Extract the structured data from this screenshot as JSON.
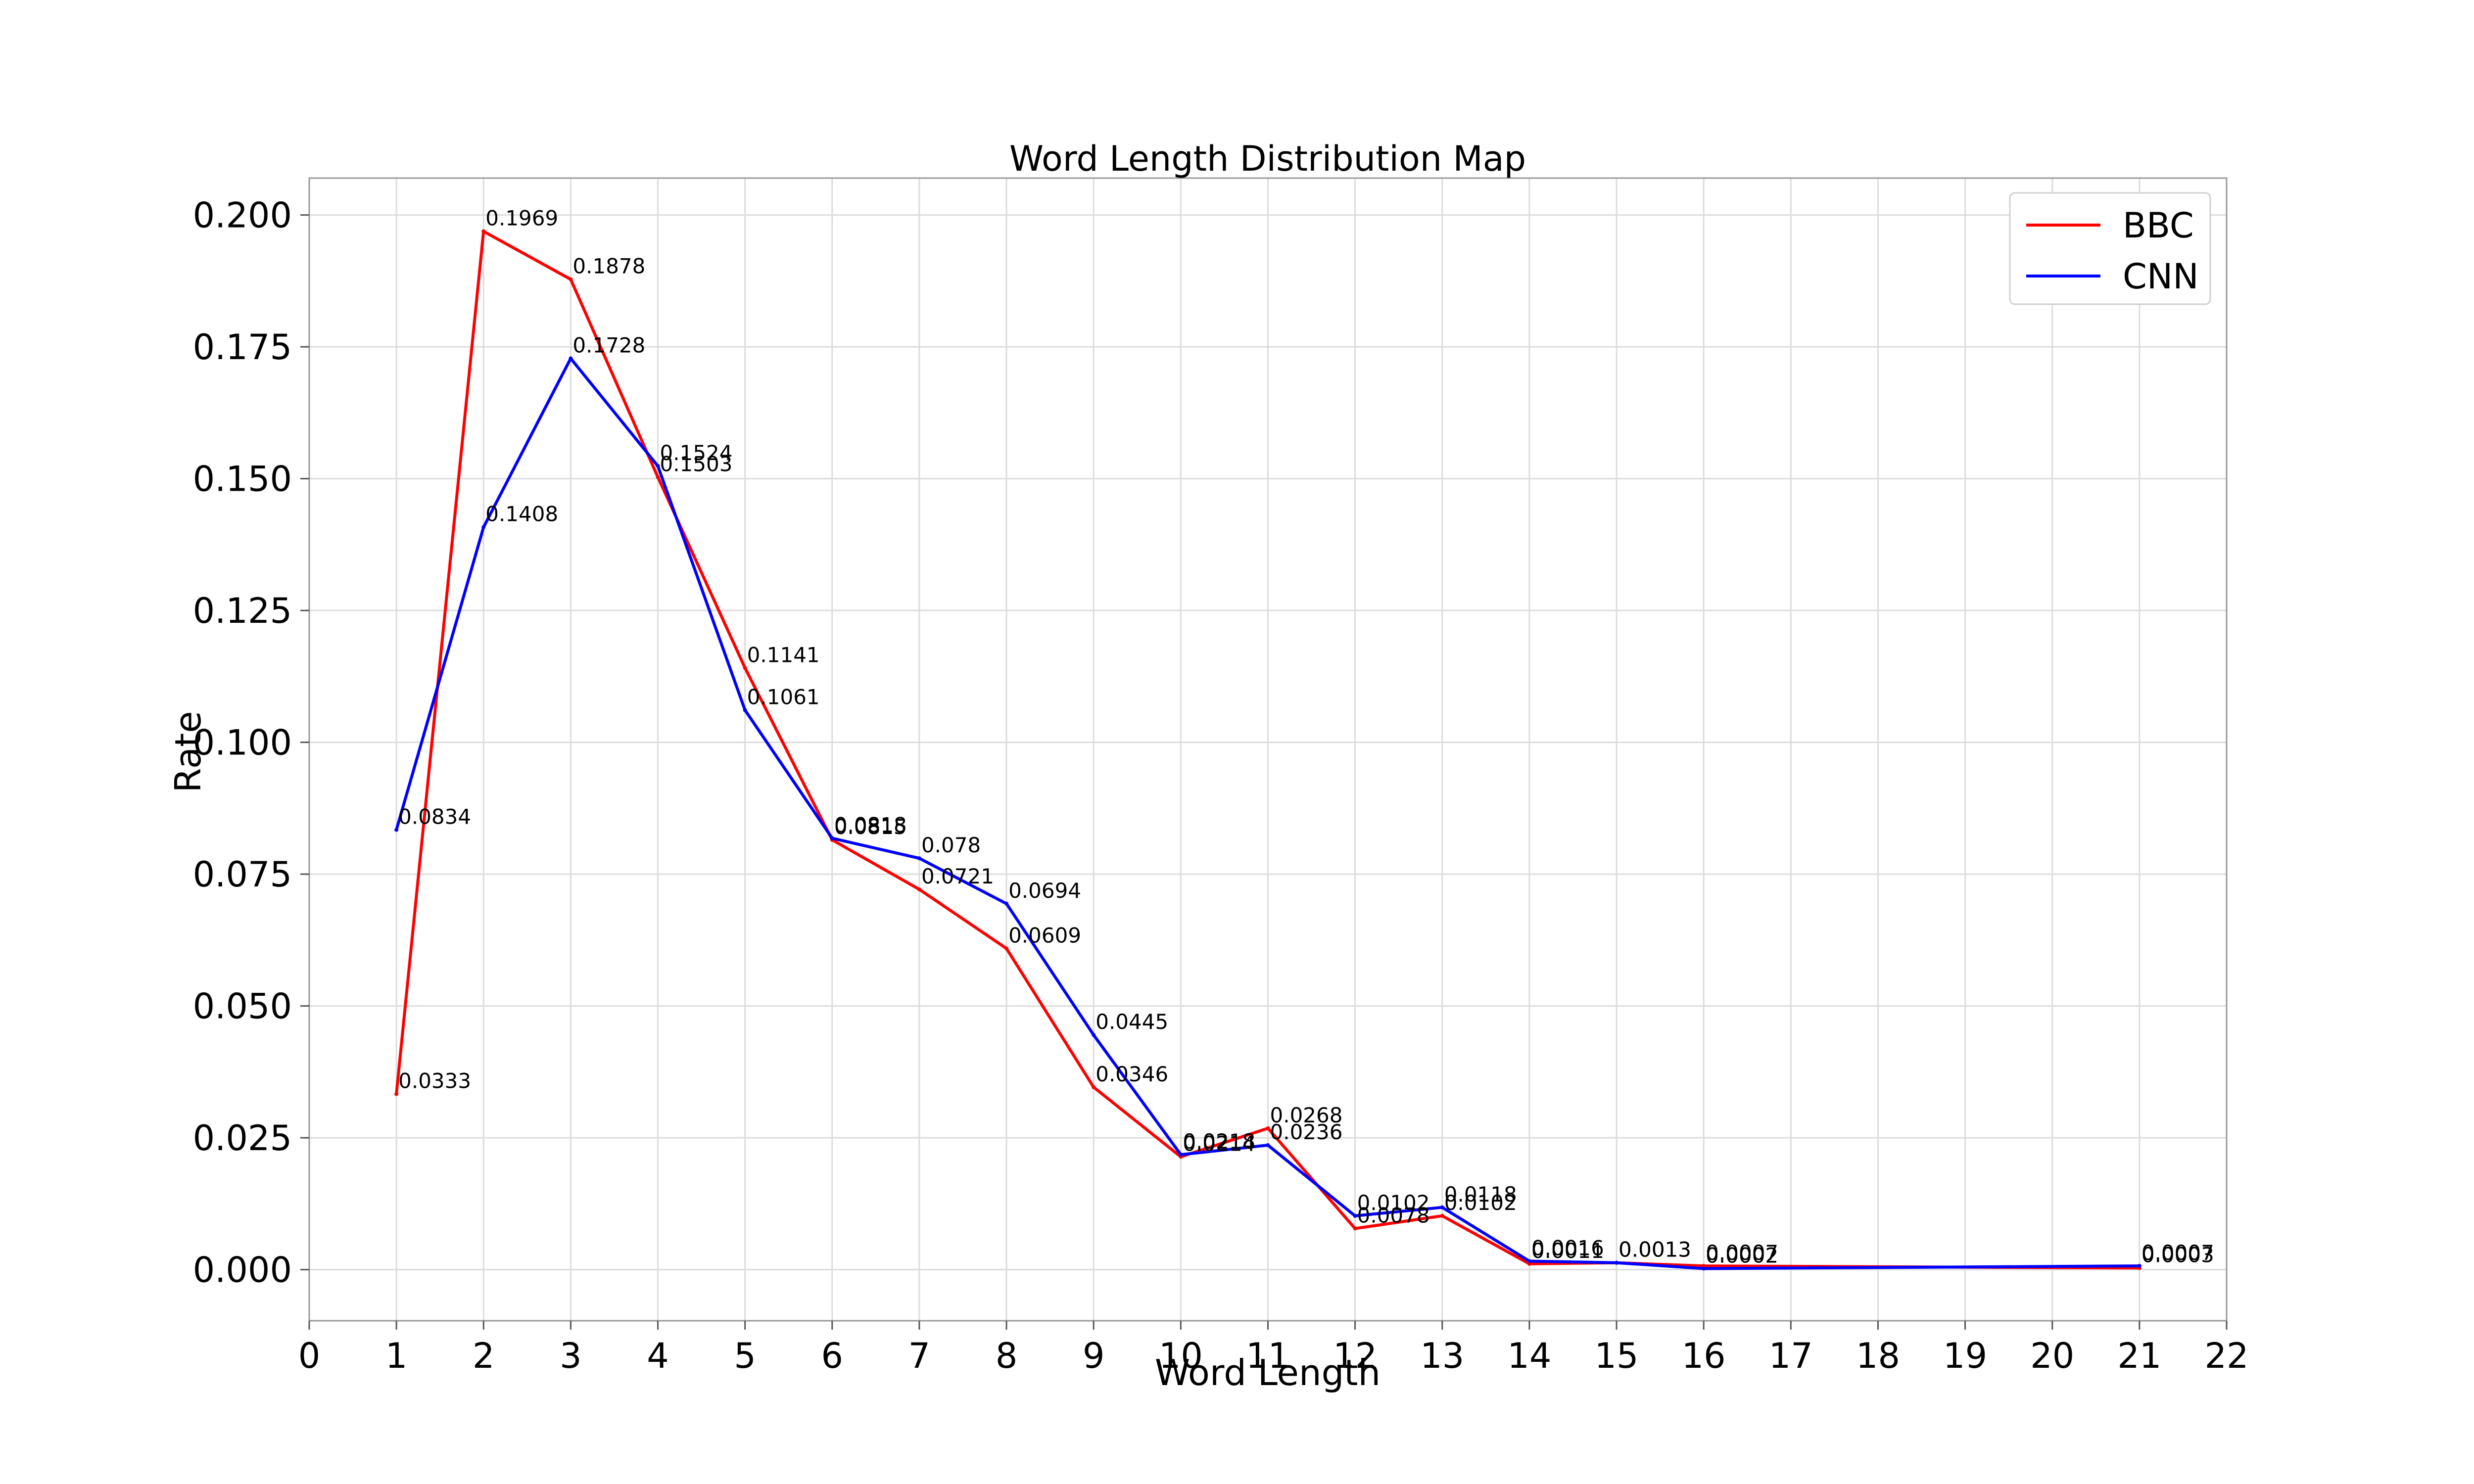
{
  "chart_data": {
    "type": "line",
    "title": "Word Length Distribution Map",
    "xlabel": "Word Length",
    "ylabel": "Rate",
    "xlim": [
      0,
      22
    ],
    "ylim": [
      -0.0097,
      0.207
    ],
    "x_ticks": [
      0,
      1,
      2,
      3,
      4,
      5,
      6,
      7,
      8,
      9,
      10,
      11,
      12,
      13,
      14,
      15,
      16,
      17,
      18,
      19,
      20,
      21,
      22
    ],
    "y_ticks": [
      0.0,
      0.025,
      0.05,
      0.075,
      0.1,
      0.125,
      0.15,
      0.175,
      0.2
    ],
    "y_tick_labels": [
      "0.000",
      "0.025",
      "0.050",
      "0.075",
      "0.100",
      "0.125",
      "0.150",
      "0.175",
      "0.200"
    ],
    "grid": true,
    "legend_position": "top-right",
    "series": [
      {
        "name": "BBC",
        "color": "#ff0000",
        "x": [
          1,
          2,
          3,
          4,
          5,
          6,
          7,
          8,
          9,
          10,
          11,
          12,
          13,
          14,
          15,
          16,
          21
        ],
        "values": [
          0.0333,
          0.1969,
          0.1878,
          0.1503,
          0.1141,
          0.0815,
          0.0721,
          0.0609,
          0.0346,
          0.0214,
          0.0268,
          0.0078,
          0.0102,
          0.0011,
          0.0013,
          0.0007,
          0.0003
        ],
        "labels": [
          "0.0333",
          "0.1969",
          "0.1878",
          "0.1503",
          "0.1141",
          "0.0815",
          "0.0721",
          "0.0609",
          "0.0346",
          "0.0214",
          "0.0268",
          "0.0078",
          "0.0102",
          "0.0011",
          "0.0013",
          "0.0007",
          "0.0003"
        ]
      },
      {
        "name": "CNN",
        "color": "#0000ff",
        "x": [
          1,
          2,
          3,
          4,
          5,
          6,
          7,
          8,
          9,
          10,
          11,
          12,
          13,
          14,
          15,
          16,
          21
        ],
        "values": [
          0.0834,
          0.1408,
          0.1728,
          0.1524,
          0.1061,
          0.0818,
          0.078,
          0.0694,
          0.0445,
          0.0218,
          0.0236,
          0.0102,
          0.0118,
          0.0016,
          0.0013,
          0.0002,
          0.0007
        ],
        "labels": [
          "0.0834",
          "0.1408",
          "0.1728",
          "0.1524",
          "0.1061",
          "0.0818",
          "0.078",
          "0.0694",
          "0.0445",
          "0.0218",
          "0.0236",
          "0.0102",
          "0.0118",
          "0.0016",
          "0.0013",
          "0.0002",
          "0.0007"
        ]
      }
    ]
  }
}
